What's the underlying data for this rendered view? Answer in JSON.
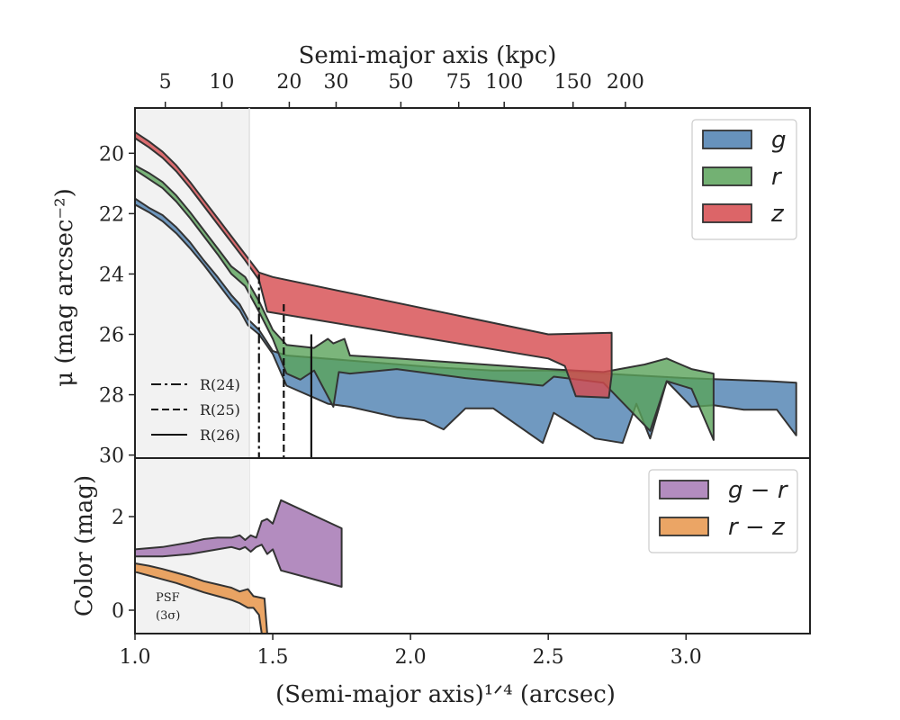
{
  "chart_data": [
    {
      "type": "area",
      "panel": "surface-brightness",
      "ylabel": "μ (mag arcsec⁻²)",
      "ylim": [
        30.1,
        18.5
      ],
      "xlim": [
        1.0,
        3.45
      ],
      "yticks": [
        20,
        22,
        24,
        26,
        28,
        30
      ],
      "top_axis": {
        "label": "Semi-major axis (kpc)",
        "ticks": [
          {
            "label": "5",
            "x": 1.11
          },
          {
            "label": "10",
            "x": 1.315
          },
          {
            "label": "20",
            "x": 1.56
          },
          {
            "label": "30",
            "x": 1.73
          },
          {
            "label": "50",
            "x": 1.965
          },
          {
            "label": "75",
            "x": 2.175
          },
          {
            "label": "100",
            "x": 2.34
          },
          {
            "label": "150",
            "x": 2.59
          },
          {
            "label": "200",
            "x": 2.78
          }
        ]
      },
      "shaded_region": {
        "x0": 1.0,
        "x1": 1.415,
        "label": "PSF",
        "sublabel": "(3σ)"
      },
      "series": [
        {
          "name": "g",
          "color": "#4c7fb0",
          "upper": [
            [
              1.0,
              21.5
            ],
            [
              1.05,
              21.8
            ],
            [
              1.1,
              22.05
            ],
            [
              1.15,
              22.45
            ],
            [
              1.2,
              22.95
            ],
            [
              1.25,
              23.55
            ],
            [
              1.3,
              24.1
            ],
            [
              1.35,
              24.7
            ],
            [
              1.38,
              25.0
            ],
            [
              1.41,
              25.5
            ],
            [
              1.45,
              25.85
            ],
            [
              1.5,
              26.55
            ],
            [
              1.55,
              26.7
            ],
            [
              2.1,
              27.1
            ],
            [
              2.3,
              27.2
            ],
            [
              2.5,
              27.2
            ],
            [
              3.0,
              27.45
            ],
            [
              3.3,
              27.55
            ],
            [
              3.4,
              27.6
            ]
          ],
          "lower": [
            [
              3.4,
              29.35
            ],
            [
              3.33,
              28.5
            ],
            [
              3.21,
              28.5
            ],
            [
              3.1,
              28.35
            ],
            [
              3.02,
              28.4
            ],
            [
              2.93,
              27.55
            ],
            [
              2.87,
              29.45
            ],
            [
              2.82,
              28.3
            ],
            [
              2.77,
              29.6
            ],
            [
              2.67,
              29.45
            ],
            [
              2.52,
              28.6
            ],
            [
              2.48,
              29.6
            ],
            [
              2.3,
              28.45
            ],
            [
              2.2,
              28.45
            ],
            [
              2.12,
              29.15
            ],
            [
              2.05,
              28.85
            ],
            [
              1.95,
              28.75
            ],
            [
              1.78,
              28.4
            ],
            [
              1.7,
              28.3
            ],
            [
              1.55,
              27.7
            ],
            [
              1.5,
              26.65
            ],
            [
              1.45,
              26.0
            ],
            [
              1.41,
              25.7
            ],
            [
              1.38,
              25.2
            ],
            [
              1.35,
              24.9
            ],
            [
              1.3,
              24.3
            ],
            [
              1.25,
              23.7
            ],
            [
              1.2,
              23.15
            ],
            [
              1.15,
              22.65
            ],
            [
              1.1,
              22.25
            ],
            [
              1.05,
              21.95
            ],
            [
              1.0,
              21.7
            ]
          ]
        },
        {
          "name": "r",
          "color": "#5aa35a",
          "upper": [
            [
              1.0,
              20.4
            ],
            [
              1.05,
              20.65
            ],
            [
              1.1,
              20.95
            ],
            [
              1.15,
              21.4
            ],
            [
              1.2,
              21.95
            ],
            [
              1.25,
              22.55
            ],
            [
              1.3,
              23.15
            ],
            [
              1.35,
              23.75
            ],
            [
              1.4,
              24.1
            ],
            [
              1.45,
              24.9
            ],
            [
              1.5,
              25.85
            ],
            [
              1.55,
              26.35
            ],
            [
              1.65,
              26.45
            ],
            [
              1.7,
              26.15
            ],
            [
              1.72,
              26.3
            ],
            [
              1.76,
              26.15
            ],
            [
              1.78,
              26.7
            ],
            [
              1.95,
              26.8
            ],
            [
              2.35,
              27.05
            ],
            [
              2.5,
              27.15
            ],
            [
              2.7,
              27.25
            ],
            [
              2.85,
              27.0
            ],
            [
              2.93,
              26.8
            ],
            [
              3.02,
              27.15
            ],
            [
              3.1,
              27.3
            ]
          ],
          "lower": [
            [
              3.1,
              29.5
            ],
            [
              3.02,
              27.8
            ],
            [
              2.93,
              27.55
            ],
            [
              2.87,
              29.2
            ],
            [
              2.7,
              27.6
            ],
            [
              2.52,
              27.4
            ],
            [
              2.48,
              27.7
            ],
            [
              2.2,
              27.45
            ],
            [
              1.95,
              27.15
            ],
            [
              1.78,
              27.3
            ],
            [
              1.74,
              27.25
            ],
            [
              1.72,
              28.4
            ],
            [
              1.65,
              27.2
            ],
            [
              1.6,
              27.5
            ],
            [
              1.55,
              27.3
            ],
            [
              1.5,
              26.15
            ],
            [
              1.45,
              25.25
            ],
            [
              1.4,
              24.4
            ],
            [
              1.35,
              24.0
            ],
            [
              1.3,
              23.35
            ],
            [
              1.25,
              22.75
            ],
            [
              1.2,
              22.15
            ],
            [
              1.15,
              21.6
            ],
            [
              1.1,
              21.15
            ],
            [
              1.05,
              20.85
            ],
            [
              1.0,
              20.55
            ]
          ]
        },
        {
          "name": "z",
          "color": "#d64a4d",
          "upper": [
            [
              1.0,
              19.3
            ],
            [
              1.05,
              19.6
            ],
            [
              1.1,
              19.95
            ],
            [
              1.15,
              20.4
            ],
            [
              1.2,
              20.95
            ],
            [
              1.25,
              21.55
            ],
            [
              1.3,
              22.15
            ],
            [
              1.35,
              22.75
            ],
            [
              1.4,
              23.35
            ],
            [
              1.45,
              23.95
            ],
            [
              1.5,
              24.1
            ],
            [
              2.5,
              26.0
            ],
            [
              2.73,
              25.95
            ]
          ],
          "lower": [
            [
              2.73,
              27.35
            ],
            [
              2.72,
              28.1
            ],
            [
              2.6,
              28.05
            ],
            [
              2.56,
              27.05
            ],
            [
              2.5,
              26.8
            ],
            [
              1.48,
              25.25
            ],
            [
              1.45,
              24.2
            ],
            [
              1.4,
              23.55
            ],
            [
              1.35,
              22.95
            ],
            [
              1.3,
              22.35
            ],
            [
              1.25,
              21.75
            ],
            [
              1.2,
              21.15
            ],
            [
              1.15,
              20.6
            ],
            [
              1.1,
              20.15
            ],
            [
              1.05,
              19.8
            ],
            [
              1.0,
              19.5
            ]
          ]
        }
      ],
      "vertical_lines": [
        {
          "name": "R(24)",
          "x": 1.45,
          "y_top": 24.0,
          "style": "dashdot"
        },
        {
          "name": "R(25)",
          "x": 1.54,
          "y_top": 25.0,
          "style": "dashed"
        },
        {
          "name": "R(26)",
          "x": 1.64,
          "y_top": 26.0,
          "style": "solid"
        }
      ],
      "legend": {
        "position": "upper-right",
        "entries": [
          "g",
          "r",
          "z"
        ]
      },
      "line_legend": {
        "position": "lower-left",
        "entries": [
          "R(24)",
          "R(25)",
          "R(26)"
        ]
      }
    },
    {
      "type": "area",
      "panel": "color",
      "ylabel": "Color (mag)",
      "xlabel": "(Semi-major axis)¹ᐟ⁴ (arcsec)",
      "xlim": [
        1.0,
        3.45
      ],
      "ylim": [
        -0.5,
        3.25
      ],
      "xticks": [
        "1.0",
        "1.5",
        "2.0",
        "2.5",
        "3.0"
      ],
      "yticks": [
        0,
        2
      ],
      "series": [
        {
          "name": "g − r",
          "color": "#a678b4",
          "upper": [
            [
              1.0,
              1.3
            ],
            [
              1.1,
              1.35
            ],
            [
              1.2,
              1.45
            ],
            [
              1.25,
              1.52
            ],
            [
              1.3,
              1.55
            ],
            [
              1.35,
              1.55
            ],
            [
              1.38,
              1.6
            ],
            [
              1.4,
              1.5
            ],
            [
              1.42,
              1.6
            ],
            [
              1.44,
              1.55
            ],
            [
              1.46,
              1.9
            ],
            [
              1.48,
              1.95
            ],
            [
              1.5,
              1.85
            ],
            [
              1.53,
              2.35
            ],
            [
              1.75,
              1.75
            ]
          ],
          "lower": [
            [
              1.75,
              0.5
            ],
            [
              1.53,
              0.85
            ],
            [
              1.5,
              1.3
            ],
            [
              1.48,
              1.2
            ],
            [
              1.46,
              1.4
            ],
            [
              1.44,
              1.35
            ],
            [
              1.42,
              1.25
            ],
            [
              1.4,
              1.35
            ],
            [
              1.38,
              1.3
            ],
            [
              1.35,
              1.35
            ],
            [
              1.3,
              1.3
            ],
            [
              1.25,
              1.25
            ],
            [
              1.2,
              1.2
            ],
            [
              1.1,
              1.15
            ],
            [
              1.0,
              1.15
            ]
          ]
        },
        {
          "name": "r − z",
          "color": "#e8954a",
          "upper": [
            [
              1.0,
              1.0
            ],
            [
              1.05,
              0.95
            ],
            [
              1.1,
              0.88
            ],
            [
              1.15,
              0.8
            ],
            [
              1.2,
              0.72
            ],
            [
              1.25,
              0.62
            ],
            [
              1.3,
              0.55
            ],
            [
              1.35,
              0.48
            ],
            [
              1.38,
              0.4
            ],
            [
              1.41,
              0.45
            ],
            [
              1.43,
              0.3
            ],
            [
              1.47,
              0.25
            ],
            [
              1.48,
              -0.5
            ]
          ],
          "lower": [
            [
              1.46,
              -0.5
            ],
            [
              1.45,
              -0.1
            ],
            [
              1.43,
              0.05
            ],
            [
              1.41,
              0.05
            ],
            [
              1.38,
              0.15
            ],
            [
              1.35,
              0.22
            ],
            [
              1.3,
              0.3
            ],
            [
              1.25,
              0.38
            ],
            [
              1.2,
              0.48
            ],
            [
              1.15,
              0.58
            ],
            [
              1.1,
              0.66
            ],
            [
              1.05,
              0.74
            ],
            [
              1.0,
              0.82
            ]
          ]
        }
      ],
      "legend": {
        "position": "upper-right",
        "entries": [
          "g − r",
          "r − z"
        ]
      }
    }
  ]
}
